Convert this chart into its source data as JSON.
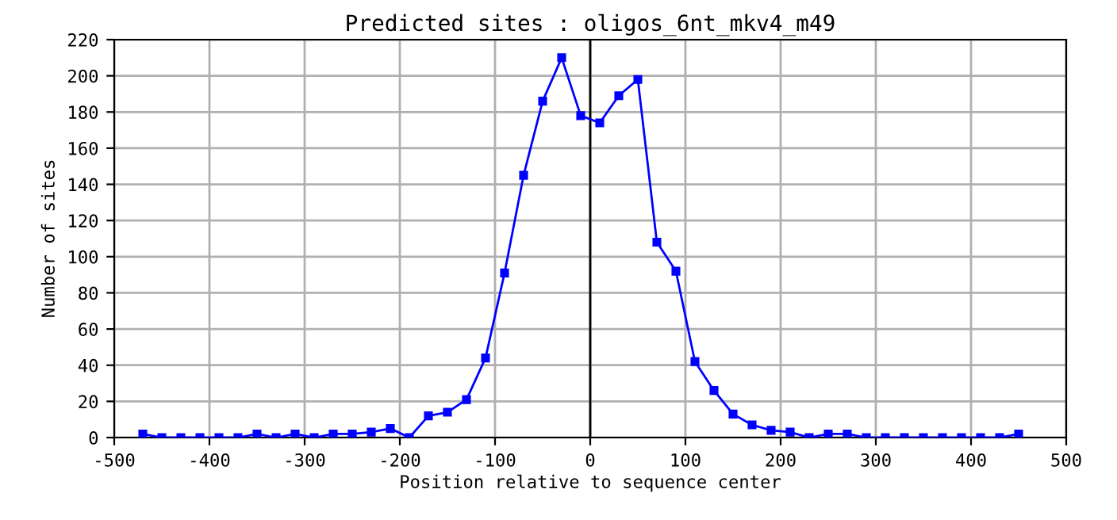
{
  "chart_data": {
    "type": "line",
    "title": "Predicted sites : oligos_6nt_mkv4_m49",
    "xlabel": "Position relative to sequence center",
    "ylabel": "Number of sites",
    "x": [
      -470,
      -450,
      -430,
      -410,
      -390,
      -370,
      -350,
      -330,
      -310,
      -290,
      -270,
      -250,
      -230,
      -210,
      -190,
      -170,
      -150,
      -130,
      -110,
      -90,
      -70,
      -50,
      -30,
      -10,
      10,
      30,
      50,
      70,
      90,
      110,
      130,
      150,
      170,
      190,
      210,
      230,
      250,
      270,
      290,
      310,
      330,
      350,
      370,
      390,
      410,
      430,
      450
    ],
    "series": [
      {
        "color": "#0000ff",
        "values": [
          2,
          0,
          0,
          0,
          0,
          0,
          2,
          0,
          2,
          0,
          2,
          2,
          3,
          5,
          0,
          12,
          14,
          21,
          44,
          91,
          145,
          186,
          210,
          178,
          174,
          189,
          198,
          108,
          92,
          42,
          26,
          13,
          7,
          4,
          3,
          0,
          2,
          2,
          0,
          0,
          0,
          0,
          0,
          0,
          0,
          0,
          2
        ]
      }
    ],
    "xlim": [
      -500,
      500
    ],
    "xticks": [
      -500,
      -400,
      -300,
      -200,
      -100,
      0,
      100,
      200,
      300,
      400,
      500
    ],
    "ylim": [
      0,
      220
    ],
    "yticks": [
      0,
      20,
      40,
      60,
      80,
      100,
      120,
      140,
      160,
      180,
      200,
      220
    ],
    "ref_lines": [
      {
        "axis": "x",
        "value": 0,
        "color": "#000000"
      }
    ],
    "grid": true,
    "marker": "square",
    "line_style": "solid",
    "legend": false
  }
}
